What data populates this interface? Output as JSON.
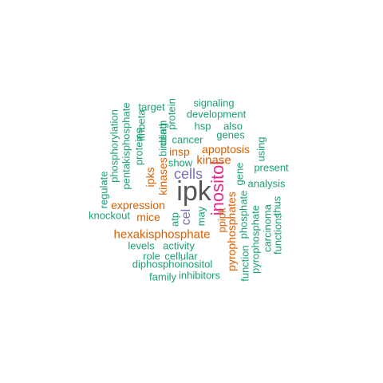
{
  "wordcloud": {
    "colors": {
      "green": "#1b9e77",
      "orange": "#d95f02",
      "purple": "#7570b3",
      "magenta": "#e7298a",
      "gray": "#555555"
    },
    "words": [
      {
        "text": "ipk",
        "color": "gray"
      },
      {
        "text": "inositol",
        "color": "magenta"
      },
      {
        "text": "cells",
        "color": "purple"
      },
      {
        "text": "kinase",
        "color": "orange"
      },
      {
        "text": "hexakisphosphate",
        "color": "orange"
      },
      {
        "text": "expression",
        "color": "orange"
      },
      {
        "text": "apoptosis",
        "color": "orange"
      },
      {
        "text": "insp",
        "color": "orange"
      },
      {
        "text": "kinases",
        "color": "orange"
      },
      {
        "text": "ipks",
        "color": "orange"
      },
      {
        "text": "binding",
        "color": "green"
      },
      {
        "text": "mice",
        "color": "orange"
      },
      {
        "text": "cancer",
        "color": "green"
      },
      {
        "text": "show",
        "color": "green"
      },
      {
        "text": "cel",
        "color": "purple"
      },
      {
        "text": "pyrophosphates",
        "color": "orange"
      },
      {
        "text": "ppipk",
        "color": "orange"
      },
      {
        "text": "phosphorylation",
        "color": "green"
      },
      {
        "text": "pentakisphosphate",
        "color": "green"
      },
      {
        "text": "proteins",
        "color": "green"
      },
      {
        "text": "ifnbeta",
        "color": "green"
      },
      {
        "text": "death",
        "color": "green"
      },
      {
        "text": "protein",
        "color": "green"
      },
      {
        "text": "target",
        "color": "green"
      },
      {
        "text": "signaling",
        "color": "green"
      },
      {
        "text": "development",
        "color": "green"
      },
      {
        "text": "hsp",
        "color": "green"
      },
      {
        "text": "also",
        "color": "green"
      },
      {
        "text": "genes",
        "color": "green"
      },
      {
        "text": "using",
        "color": "green"
      },
      {
        "text": "present",
        "color": "green"
      },
      {
        "text": "gene",
        "color": "green"
      },
      {
        "text": "analysis",
        "color": "green"
      },
      {
        "text": "regulate",
        "color": "green"
      },
      {
        "text": "knockout",
        "color": "green"
      },
      {
        "text": "atp",
        "color": "green"
      },
      {
        "text": "may",
        "color": "green"
      },
      {
        "text": "phosphate",
        "color": "green"
      },
      {
        "text": "function",
        "color": "green"
      },
      {
        "text": "pyrophosphate",
        "color": "green"
      },
      {
        "text": "carcinoma",
        "color": "green"
      },
      {
        "text": "thus",
        "color": "green"
      },
      {
        "text": "functions",
        "color": "green"
      },
      {
        "text": "levels",
        "color": "green"
      },
      {
        "text": "activity",
        "color": "green"
      },
      {
        "text": "role",
        "color": "green"
      },
      {
        "text": "cellular",
        "color": "green"
      },
      {
        "text": "diphosphoinositol",
        "color": "green"
      },
      {
        "text": "family",
        "color": "green"
      },
      {
        "text": "inhibitors",
        "color": "green"
      }
    ]
  }
}
